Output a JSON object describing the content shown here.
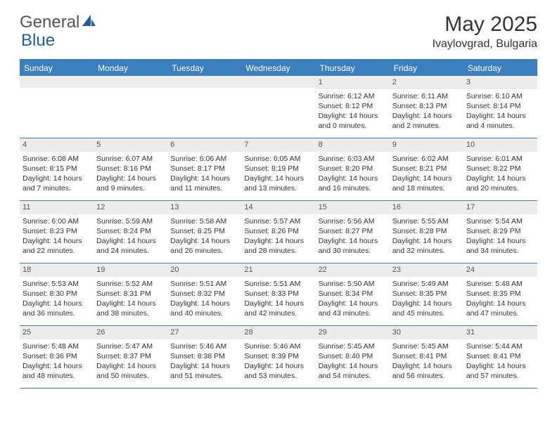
{
  "brand": {
    "word1": "General",
    "word2": "Blue",
    "word2_color": "#1e5fa0"
  },
  "title": "May 2025",
  "location": "Ivaylovgrad, Bulgaria",
  "colors": {
    "header_bar": "#3b7fbf",
    "daynum_bg": "#ececec",
    "text": "#333333",
    "border": "#3b7fbf"
  },
  "weekdays": [
    "Sunday",
    "Monday",
    "Tuesday",
    "Wednesday",
    "Thursday",
    "Friday",
    "Saturday"
  ],
  "weeks": [
    [
      null,
      null,
      null,
      null,
      {
        "d": "1",
        "sr": "6:12 AM",
        "ss": "8:12 PM",
        "dl": "14 hours and 0 minutes."
      },
      {
        "d": "2",
        "sr": "6:11 AM",
        "ss": "8:13 PM",
        "dl": "14 hours and 2 minutes."
      },
      {
        "d": "3",
        "sr": "6:10 AM",
        "ss": "8:14 PM",
        "dl": "14 hours and 4 minutes."
      }
    ],
    [
      {
        "d": "4",
        "sr": "6:08 AM",
        "ss": "8:15 PM",
        "dl": "14 hours and 7 minutes."
      },
      {
        "d": "5",
        "sr": "6:07 AM",
        "ss": "8:16 PM",
        "dl": "14 hours and 9 minutes."
      },
      {
        "d": "6",
        "sr": "6:06 AM",
        "ss": "8:17 PM",
        "dl": "14 hours and 11 minutes."
      },
      {
        "d": "7",
        "sr": "6:05 AM",
        "ss": "8:19 PM",
        "dl": "14 hours and 13 minutes."
      },
      {
        "d": "8",
        "sr": "6:03 AM",
        "ss": "8:20 PM",
        "dl": "14 hours and 16 minutes."
      },
      {
        "d": "9",
        "sr": "6:02 AM",
        "ss": "8:21 PM",
        "dl": "14 hours and 18 minutes."
      },
      {
        "d": "10",
        "sr": "6:01 AM",
        "ss": "8:22 PM",
        "dl": "14 hours and 20 minutes."
      }
    ],
    [
      {
        "d": "11",
        "sr": "6:00 AM",
        "ss": "8:23 PM",
        "dl": "14 hours and 22 minutes."
      },
      {
        "d": "12",
        "sr": "5:59 AM",
        "ss": "8:24 PM",
        "dl": "14 hours and 24 minutes."
      },
      {
        "d": "13",
        "sr": "5:58 AM",
        "ss": "8:25 PM",
        "dl": "14 hours and 26 minutes."
      },
      {
        "d": "14",
        "sr": "5:57 AM",
        "ss": "8:26 PM",
        "dl": "14 hours and 28 minutes."
      },
      {
        "d": "15",
        "sr": "5:56 AM",
        "ss": "8:27 PM",
        "dl": "14 hours and 30 minutes."
      },
      {
        "d": "16",
        "sr": "5:55 AM",
        "ss": "8:28 PM",
        "dl": "14 hours and 32 minutes."
      },
      {
        "d": "17",
        "sr": "5:54 AM",
        "ss": "8:29 PM",
        "dl": "14 hours and 34 minutes."
      }
    ],
    [
      {
        "d": "18",
        "sr": "5:53 AM",
        "ss": "8:30 PM",
        "dl": "14 hours and 36 minutes."
      },
      {
        "d": "19",
        "sr": "5:52 AM",
        "ss": "8:31 PM",
        "dl": "14 hours and 38 minutes."
      },
      {
        "d": "20",
        "sr": "5:51 AM",
        "ss": "8:32 PM",
        "dl": "14 hours and 40 minutes."
      },
      {
        "d": "21",
        "sr": "5:51 AM",
        "ss": "8:33 PM",
        "dl": "14 hours and 42 minutes."
      },
      {
        "d": "22",
        "sr": "5:50 AM",
        "ss": "8:34 PM",
        "dl": "14 hours and 43 minutes."
      },
      {
        "d": "23",
        "sr": "5:49 AM",
        "ss": "8:35 PM",
        "dl": "14 hours and 45 minutes."
      },
      {
        "d": "24",
        "sr": "5:48 AM",
        "ss": "8:35 PM",
        "dl": "14 hours and 47 minutes."
      }
    ],
    [
      {
        "d": "25",
        "sr": "5:48 AM",
        "ss": "8:36 PM",
        "dl": "14 hours and 48 minutes."
      },
      {
        "d": "26",
        "sr": "5:47 AM",
        "ss": "8:37 PM",
        "dl": "14 hours and 50 minutes."
      },
      {
        "d": "27",
        "sr": "5:46 AM",
        "ss": "8:38 PM",
        "dl": "14 hours and 51 minutes."
      },
      {
        "d": "28",
        "sr": "5:46 AM",
        "ss": "8:39 PM",
        "dl": "14 hours and 53 minutes."
      },
      {
        "d": "29",
        "sr": "5:45 AM",
        "ss": "8:40 PM",
        "dl": "14 hours and 54 minutes."
      },
      {
        "d": "30",
        "sr": "5:45 AM",
        "ss": "8:41 PM",
        "dl": "14 hours and 56 minutes."
      },
      {
        "d": "31",
        "sr": "5:44 AM",
        "ss": "8:41 PM",
        "dl": "14 hours and 57 minutes."
      }
    ]
  ],
  "labels": {
    "sunrise": "Sunrise: ",
    "sunset": "Sunset: ",
    "daylight": "Daylight: "
  }
}
